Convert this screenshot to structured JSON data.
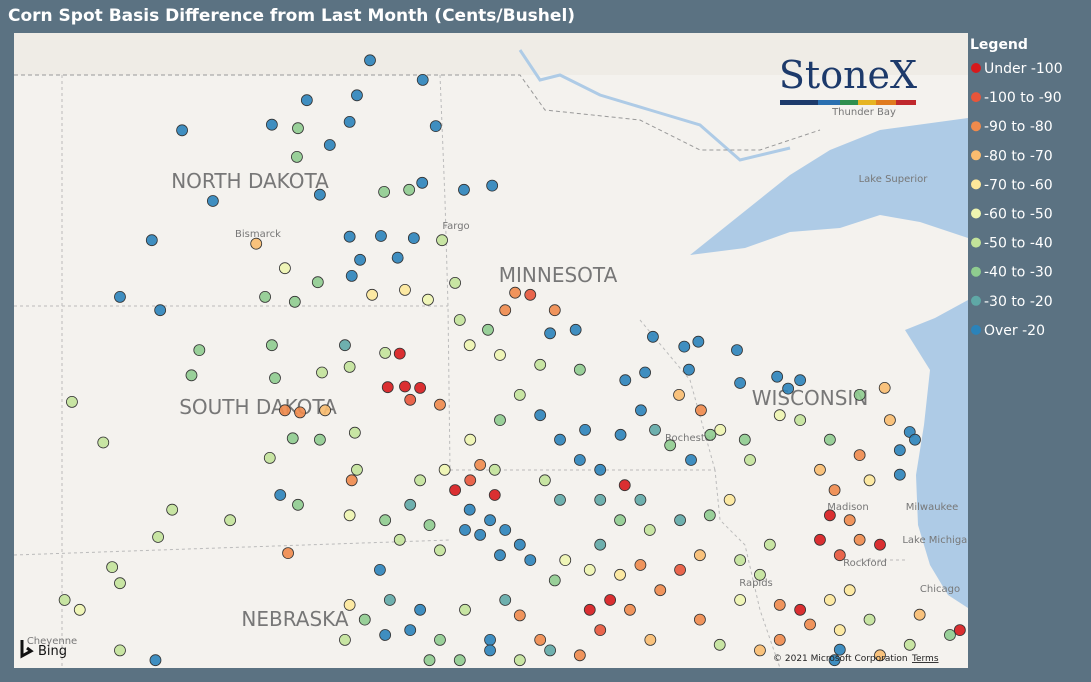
{
  "header": {
    "title": "Corn Spot Basis Difference from Last Month (Cents/Bushel)"
  },
  "legend": {
    "title": "Legend",
    "items": [
      {
        "label": "Under -100",
        "color": "#d7191c"
      },
      {
        "label": "-100 to -90",
        "color": "#e8553a"
      },
      {
        "label": "-90 to -80",
        "color": "#f08a4b"
      },
      {
        "label": "-80 to -70",
        "color": "#f9bc6f"
      },
      {
        "label": "-70 to -60",
        "color": "#fde89a"
      },
      {
        "label": "-60 to -50",
        "color": "#eef5b0"
      },
      {
        "label": "-50 to -40",
        "color": "#c3e39a"
      },
      {
        "label": "-40 to -30",
        "color": "#8fcc8f"
      },
      {
        "label": "-30 to -20",
        "color": "#5fa8a6"
      },
      {
        "label": "Over -20",
        "color": "#2b83ba"
      }
    ]
  },
  "map": {
    "logo": "StoneX",
    "bing": "Bing",
    "attribution": "© 2021 Microsoft Corporation",
    "terms": "Terms",
    "labels": [
      "NORTH DAKOTA",
      "MINNESOTA",
      "SOUTH DAKOTA",
      "WISCONSIN",
      "NEBRASKA",
      "Bismarck",
      "Fargo",
      "Rochester",
      "Madison",
      "Milwaukee",
      "Chicago",
      "Thunder Bay",
      "Lake Superior",
      "Lake Michigan",
      "Rapids",
      "Rockford",
      "Cheyenne"
    ],
    "points": [
      [
        -98.14,
        49.45,
        9
      ],
      [
        -97.13,
        49.17,
        9
      ],
      [
        -98.39,
        48.95,
        9
      ],
      [
        -99.35,
        48.88,
        9
      ],
      [
        -101.74,
        48.45,
        9
      ],
      [
        -100.02,
        48.53,
        9
      ],
      [
        -98.53,
        48.57,
        9
      ],
      [
        -96.88,
        48.51,
        9
      ],
      [
        -99.52,
        48.48,
        7
      ],
      [
        -99.54,
        48.07,
        7
      ],
      [
        -98.91,
        48.24,
        9
      ],
      [
        -99.1,
        47.53,
        9
      ],
      [
        -101.15,
        47.44,
        9
      ],
      [
        -97.87,
        47.57,
        7
      ],
      [
        -97.39,
        47.6,
        7
      ],
      [
        -97.14,
        47.7,
        9
      ],
      [
        -96.34,
        47.6,
        9
      ],
      [
        -95.8,
        47.66,
        9
      ],
      [
        -102.32,
        46.88,
        9
      ],
      [
        -100.32,
        46.83,
        3
      ],
      [
        -98.53,
        46.93,
        9
      ],
      [
        -97.93,
        46.94,
        9
      ],
      [
        -97.3,
        46.91,
        9
      ],
      [
        -96.76,
        46.88,
        6
      ],
      [
        -97.61,
        46.63,
        9
      ],
      [
        -98.33,
        46.6,
        9
      ],
      [
        -99.77,
        46.48,
        5
      ],
      [
        -102.93,
        46.07,
        9
      ],
      [
        -102.16,
        45.88,
        9
      ],
      [
        -100.15,
        46.07,
        7
      ],
      [
        -99.58,
        46.0,
        7
      ],
      [
        -99.14,
        46.28,
        7
      ],
      [
        -98.49,
        46.37,
        9
      ],
      [
        -98.1,
        46.1,
        4
      ],
      [
        -97.47,
        46.17,
        4
      ],
      [
        -97.03,
        46.03,
        5
      ],
      [
        -96.51,
        46.27,
        6
      ],
      [
        -95.36,
        46.13,
        2
      ],
      [
        -95.07,
        46.1,
        1
      ],
      [
        -95.55,
        45.88,
        2
      ],
      [
        -94.6,
        45.88,
        2
      ],
      [
        -94.2,
        45.6,
        9
      ],
      [
        -94.69,
        45.55,
        9
      ],
      [
        -95.88,
        45.6,
        7
      ],
      [
        -96.42,
        45.74,
        6
      ],
      [
        -96.23,
        45.38,
        5
      ],
      [
        -95.65,
        45.24,
        5
      ],
      [
        -94.88,
        45.1,
        6
      ],
      [
        -94.12,
        45.03,
        7
      ],
      [
        -92.72,
        45.5,
        9
      ],
      [
        -92.12,
        45.36,
        9
      ],
      [
        -91.85,
        45.43,
        9
      ],
      [
        -91.11,
        45.31,
        9
      ],
      [
        -92.03,
        45.03,
        9
      ],
      [
        -91.05,
        44.84,
        9
      ],
      [
        -90.34,
        44.93,
        9
      ],
      [
        -89.9,
        44.88,
        9
      ],
      [
        -90.13,
        44.76,
        9
      ],
      [
        -92.87,
        44.99,
        9
      ],
      [
        -93.25,
        44.88,
        9
      ],
      [
        -103.85,
        44.57,
        6
      ],
      [
        -103.25,
        43.99,
        6
      ],
      [
        -101.41,
        45.31,
        7
      ],
      [
        -101.56,
        44.95,
        7
      ],
      [
        -99.96,
        44.91,
        7
      ],
      [
        -100.02,
        45.38,
        7
      ],
      [
        -99.06,
        44.99,
        6
      ],
      [
        -98.62,
        45.38,
        8
      ],
      [
        -98.53,
        45.07,
        6
      ],
      [
        -97.85,
        45.27,
        6
      ],
      [
        -97.57,
        45.26,
        0
      ],
      [
        -97.8,
        44.78,
        0
      ],
      [
        -97.47,
        44.79,
        0
      ],
      [
        -97.18,
        44.77,
        0
      ],
      [
        -97.37,
        44.6,
        1
      ],
      [
        -96.8,
        44.53,
        2
      ],
      [
        -99.77,
        44.45,
        2
      ],
      [
        -99.48,
        44.42,
        2
      ],
      [
        -99.0,
        44.45,
        3
      ],
      [
        -99.1,
        44.03,
        7
      ],
      [
        -98.43,
        44.13,
        6
      ],
      [
        -100.06,
        43.77,
        6
      ],
      [
        -99.62,
        44.05,
        7
      ],
      [
        -98.39,
        43.6,
        6
      ],
      [
        -99.86,
        43.24,
        9
      ],
      [
        -99.52,
        43.1,
        7
      ],
      [
        -98.49,
        43.45,
        2
      ],
      [
        -98.53,
        42.95,
        5
      ],
      [
        -100.82,
        42.88,
        6
      ],
      [
        -101.93,
        43.03,
        6
      ],
      [
        -102.2,
        42.64,
        6
      ],
      [
        -99.71,
        42.41,
        2
      ],
      [
        -102.93,
        41.98,
        6
      ],
      [
        -103.08,
        42.21,
        6
      ],
      [
        -96.23,
        43.03,
        9
      ],
      [
        -95.84,
        42.88,
        9
      ],
      [
        -96.03,
        42.67,
        9
      ],
      [
        -95.55,
        42.74,
        9
      ],
      [
        -95.27,
        42.53,
        9
      ],
      [
        -96.32,
        42.74,
        9
      ],
      [
        -95.65,
        42.38,
        9
      ],
      [
        -95.07,
        42.31,
        9
      ],
      [
        -96.51,
        43.31,
        0
      ],
      [
        -95.75,
        43.24,
        0
      ],
      [
        -96.22,
        43.45,
        1
      ],
      [
        -96.03,
        43.67,
        2
      ],
      [
        -96.71,
        43.6,
        5
      ],
      [
        -97.18,
        43.45,
        6
      ],
      [
        -97.37,
        43.1,
        8
      ],
      [
        -97.0,
        42.81,
        7
      ],
      [
        -96.8,
        42.45,
        6
      ],
      [
        -97.57,
        42.6,
        6
      ],
      [
        -97.85,
        42.88,
        7
      ],
      [
        -97.95,
        42.17,
        9
      ],
      [
        -97.76,
        41.74,
        8
      ],
      [
        -97.18,
        41.6,
        9
      ],
      [
        -97.37,
        41.31,
        9
      ],
      [
        -96.8,
        41.17,
        7
      ],
      [
        -98.24,
        41.46,
        7
      ],
      [
        -98.53,
        41.67,
        4
      ],
      [
        -97.85,
        41.24,
        9
      ],
      [
        -98.62,
        41.17,
        6
      ],
      [
        -102.25,
        40.88,
        9
      ],
      [
        -102.93,
        41.02,
        6
      ],
      [
        -103.99,
        41.74,
        6
      ],
      [
        -103.7,
        41.6,
        5
      ],
      [
        -96.32,
        41.6,
        6
      ],
      [
        -95.84,
        41.17,
        9
      ],
      [
        -95.27,
        41.52,
        2
      ],
      [
        -94.88,
        41.17,
        2
      ],
      [
        -95.55,
        41.74,
        8
      ],
      [
        -94.6,
        42.02,
        7
      ],
      [
        -94.4,
        42.31,
        5
      ],
      [
        -94.79,
        43.45,
        6
      ],
      [
        -94.5,
        43.17,
        8
      ],
      [
        -94.12,
        43.74,
        9
      ],
      [
        -93.73,
        43.6,
        9
      ],
      [
        -94.02,
        44.17,
        9
      ],
      [
        -94.5,
        44.03,
        9
      ],
      [
        -94.88,
        44.38,
        9
      ],
      [
        -95.27,
        44.67,
        6
      ],
      [
        -95.65,
        44.31,
        7
      ],
      [
        -96.22,
        44.03,
        5
      ],
      [
        -95.75,
        43.6,
        6
      ],
      [
        -93.34,
        44.1,
        9
      ],
      [
        -92.95,
        44.45,
        9
      ],
      [
        -92.68,
        44.17,
        8
      ],
      [
        -92.39,
        43.95,
        7
      ],
      [
        -91.99,
        43.74,
        9
      ],
      [
        -91.62,
        44.1,
        7
      ],
      [
        -91.8,
        44.45,
        2
      ],
      [
        -92.22,
        44.67,
        3
      ],
      [
        -91.43,
        44.17,
        5
      ],
      [
        -93.73,
        43.17,
        8
      ],
      [
        -93.26,
        43.38,
        0
      ],
      [
        -92.96,
        43.17,
        8
      ],
      [
        -93.35,
        42.88,
        7
      ],
      [
        -92.78,
        42.74,
        6
      ],
      [
        -92.2,
        42.88,
        8
      ],
      [
        -91.63,
        42.95,
        7
      ],
      [
        -91.25,
        43.17,
        4
      ],
      [
        -93.73,
        42.53,
        8
      ],
      [
        -93.93,
        42.17,
        5
      ],
      [
        -93.35,
        42.1,
        4
      ],
      [
        -92.96,
        42.24,
        2
      ],
      [
        -93.54,
        41.74,
        0
      ],
      [
        -93.93,
        41.6,
        0
      ],
      [
        -93.73,
        41.31,
        1
      ],
      [
        -93.16,
        41.6,
        2
      ],
      [
        -92.58,
        41.88,
        2
      ],
      [
        -92.2,
        42.17,
        1
      ],
      [
        -91.82,
        42.38,
        3
      ],
      [
        -92.77,
        41.17,
        3
      ],
      [
        -91.82,
        41.46,
        2
      ],
      [
        -91.44,
        41.1,
        6
      ],
      [
        -91.05,
        41.74,
        5
      ],
      [
        -90.67,
        42.1,
        6
      ],
      [
        -90.48,
        42.53,
        6
      ],
      [
        -91.05,
        42.31,
        6
      ],
      [
        -90.86,
        43.74,
        6
      ],
      [
        -90.96,
        44.03,
        7
      ],
      [
        -89.9,
        44.31,
        6
      ],
      [
        -90.29,
        44.38,
        5
      ],
      [
        -89.33,
        44.03,
        7
      ],
      [
        -89.52,
        43.6,
        3
      ],
      [
        -89.33,
        42.95,
        0
      ],
      [
        -88.95,
        42.88,
        2
      ],
      [
        -89.52,
        42.6,
        0
      ],
      [
        -89.14,
        42.38,
        1
      ],
      [
        -88.76,
        42.6,
        2
      ],
      [
        -88.37,
        42.53,
        0
      ],
      [
        -89.24,
        43.31,
        2
      ],
      [
        -88.76,
        43.81,
        2
      ],
      [
        -88.28,
        44.77,
        3
      ],
      [
        -88.18,
        44.31,
        3
      ],
      [
        -88.76,
        44.67,
        7
      ],
      [
        -87.8,
        44.14,
        9
      ],
      [
        -87.99,
        43.88,
        9
      ],
      [
        -87.7,
        44.03,
        9
      ],
      [
        -87.99,
        43.53,
        9
      ],
      [
        -88.57,
        43.45,
        4
      ],
      [
        -88.95,
        41.88,
        4
      ],
      [
        -89.33,
        41.74,
        4
      ],
      [
        -89.9,
        41.6,
        0
      ],
      [
        -90.29,
        41.67,
        2
      ],
      [
        -89.71,
        41.39,
        2
      ],
      [
        -89.14,
        41.31,
        4
      ],
      [
        -88.57,
        41.46,
        6
      ],
      [
        -87.61,
        41.53,
        3
      ],
      [
        -87.03,
        41.24,
        7
      ],
      [
        -86.84,
        41.31,
        0
      ],
      [
        -87.8,
        41.1,
        6
      ],
      [
        -88.37,
        40.95,
        3
      ],
      [
        -89.14,
        41.03,
        9
      ],
      [
        -89.24,
        40.88,
        9
      ],
      [
        -90.67,
        41.02,
        3
      ],
      [
        -90.29,
        41.17,
        2
      ],
      [
        -94.69,
        41.02,
        8
      ],
      [
        -94.12,
        40.95,
        2
      ],
      [
        -95.27,
        40.88,
        6
      ],
      [
        -96.42,
        40.88,
        7
      ],
      [
        -97.0,
        40.88,
        7
      ],
      [
        -95.84,
        41.02,
        9
      ]
    ]
  }
}
